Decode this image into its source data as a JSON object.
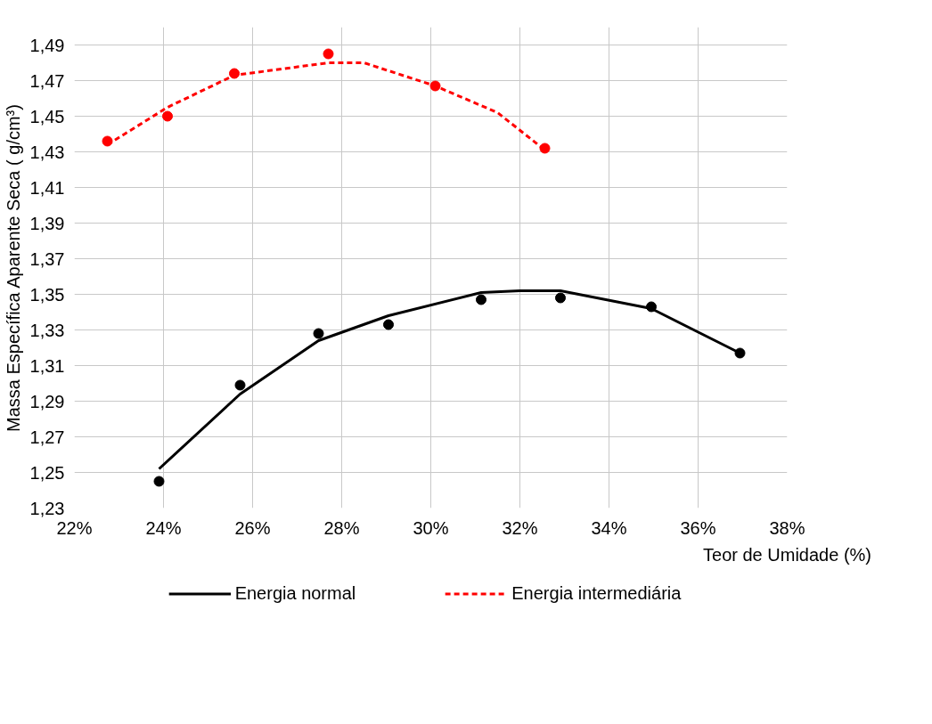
{
  "chart_data": {
    "type": "scatter",
    "xlabel": "Teor de Umidade (%)",
    "ylabel": "Massa Específica Aparente Seca ( g/cm³)",
    "xlim": [
      22,
      38
    ],
    "ylim": [
      1.23,
      1.5
    ],
    "xticks": [
      {
        "value": 22,
        "label": "22%"
      },
      {
        "value": 24,
        "label": "24%"
      },
      {
        "value": 26,
        "label": "26%"
      },
      {
        "value": 28,
        "label": "28%"
      },
      {
        "value": 30,
        "label": "30%"
      },
      {
        "value": 32,
        "label": "32%"
      },
      {
        "value": 34,
        "label": "34%"
      },
      {
        "value": 36,
        "label": "36%"
      },
      {
        "value": 38,
        "label": "38%"
      }
    ],
    "yticks": [
      {
        "value": 1.23,
        "label": "1,23"
      },
      {
        "value": 1.25,
        "label": "1,25"
      },
      {
        "value": 1.27,
        "label": "1,27"
      },
      {
        "value": 1.29,
        "label": "1,29"
      },
      {
        "value": 1.31,
        "label": "1,31"
      },
      {
        "value": 1.33,
        "label": "1,33"
      },
      {
        "value": 1.35,
        "label": "1,35"
      },
      {
        "value": 1.37,
        "label": "1,37"
      },
      {
        "value": 1.39,
        "label": "1,39"
      },
      {
        "value": 1.41,
        "label": "1,41"
      },
      {
        "value": 1.43,
        "label": "1,43"
      },
      {
        "value": 1.45,
        "label": "1,45"
      },
      {
        "value": 1.47,
        "label": "1,47"
      },
      {
        "value": 1.49,
        "label": "1,49"
      }
    ],
    "grid": true,
    "legend": "bottom",
    "series": [
      {
        "marker": "circle",
        "color": "#000000",
        "x": [
          23.9,
          25.72,
          27.48,
          29.05,
          31.13,
          32.91,
          34.95,
          36.94
        ],
        "values": [
          1.245,
          1.299,
          1.328,
          1.333,
          1.347,
          1.348,
          1.343,
          1.317
        ]
      },
      {
        "marker": "circle",
        "color": "#ff0000",
        "x": [
          22.74,
          24.09,
          25.59,
          27.7,
          30.1,
          32.56
        ],
        "values": [
          1.436,
          1.45,
          1.474,
          1.485,
          1.467,
          1.432
        ]
      },
      {
        "type": "line",
        "name": "Energia normal",
        "color": "#000000",
        "line_style": "solid",
        "x": [
          23.9,
          25.72,
          27.48,
          29.05,
          31.13,
          32.0,
          32.91,
          34.95,
          36.94
        ],
        "values": [
          1.252,
          1.294,
          1.324,
          1.338,
          1.351,
          1.352,
          1.352,
          1.342,
          1.317
        ]
      },
      {
        "type": "line",
        "name": "Energia intermediária",
        "color": "#ff0000",
        "line_style": "dashed",
        "x": [
          22.74,
          24.09,
          25.59,
          27.7,
          28.5,
          30.1,
          31.5,
          32.56
        ],
        "values": [
          1.434,
          1.455,
          1.473,
          1.48,
          1.48,
          1.467,
          1.452,
          1.431
        ]
      }
    ]
  }
}
